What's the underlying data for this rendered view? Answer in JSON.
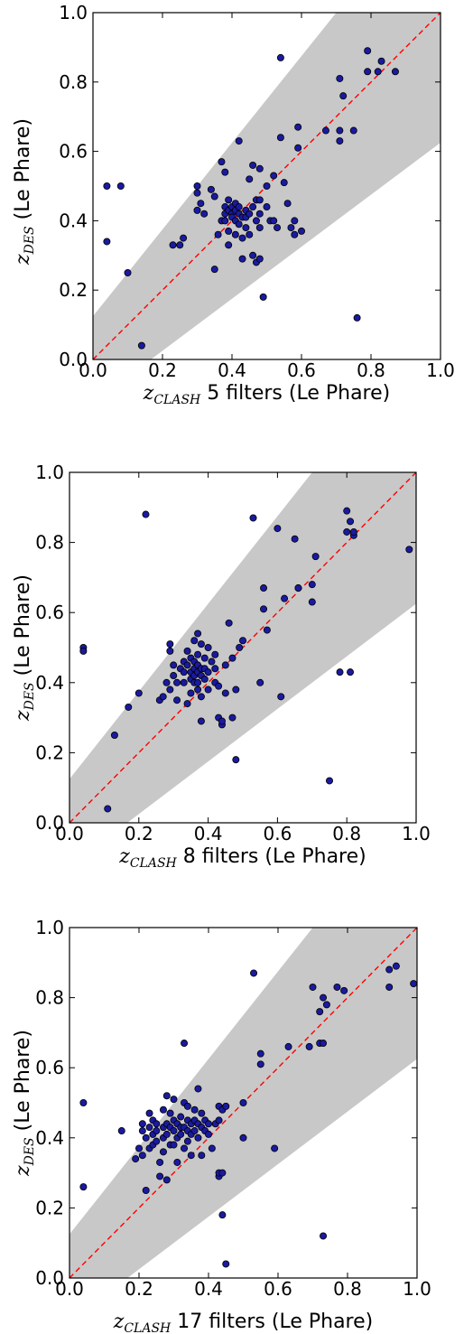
{
  "chart_data": [
    {
      "type": "scatter",
      "xlabel": {
        "var": "z",
        "sub": "CLASH",
        "rest": " 5 filters (Le Phare)"
      },
      "ylabel": {
        "var": "z",
        "sub": "DES",
        "rest": " (Le Phare)"
      },
      "xlim": [
        0.0,
        1.0
      ],
      "ylim": [
        0.0,
        1.0
      ],
      "xticks": [
        "0.0",
        "0.2",
        "0.4",
        "0.6",
        "0.8",
        "1.0"
      ],
      "yticks": [
        "0.0",
        "0.2",
        "0.4",
        "0.6",
        "0.8",
        "1.0"
      ],
      "reference_line": {
        "style": "dashed",
        "color": "#ff0000",
        "from": [
          0,
          0
        ],
        "to": [
          1,
          1
        ]
      },
      "band": {
        "color": "#c8c8c8",
        "lower_slope": 0.75,
        "lower_intercept": -0.125,
        "upper_slope": 1.25,
        "upper_intercept": 0.125
      },
      "marker_color": "#1a1aa0",
      "points": [
        [
          0.04,
          0.5
        ],
        [
          0.04,
          0.34
        ],
        [
          0.08,
          0.5
        ],
        [
          0.1,
          0.25
        ],
        [
          0.14,
          0.04
        ],
        [
          0.23,
          0.33
        ],
        [
          0.25,
          0.33
        ],
        [
          0.26,
          0.35
        ],
        [
          0.3,
          0.48
        ],
        [
          0.3,
          0.5
        ],
        [
          0.3,
          0.43
        ],
        [
          0.31,
          0.45
        ],
        [
          0.32,
          0.42
        ],
        [
          0.34,
          0.49
        ],
        [
          0.35,
          0.47
        ],
        [
          0.35,
          0.26
        ],
        [
          0.36,
          0.36
        ],
        [
          0.37,
          0.57
        ],
        [
          0.37,
          0.4
        ],
        [
          0.38,
          0.54
        ],
        [
          0.38,
          0.44
        ],
        [
          0.38,
          0.42
        ],
        [
          0.38,
          0.4
        ],
        [
          0.39,
          0.46
        ],
        [
          0.39,
          0.43
        ],
        [
          0.39,
          0.37
        ],
        [
          0.39,
          0.33
        ],
        [
          0.4,
          0.44
        ],
        [
          0.4,
          0.42
        ],
        [
          0.4,
          0.41
        ],
        [
          0.41,
          0.45
        ],
        [
          0.41,
          0.43
        ],
        [
          0.41,
          0.4
        ],
        [
          0.41,
          0.36
        ],
        [
          0.42,
          0.63
        ],
        [
          0.42,
          0.44
        ],
        [
          0.42,
          0.42
        ],
        [
          0.42,
          0.39
        ],
        [
          0.43,
          0.41
        ],
        [
          0.43,
          0.35
        ],
        [
          0.43,
          0.29
        ],
        [
          0.44,
          0.43
        ],
        [
          0.44,
          0.41
        ],
        [
          0.44,
          0.38
        ],
        [
          0.45,
          0.52
        ],
        [
          0.45,
          0.42
        ],
        [
          0.45,
          0.36
        ],
        [
          0.46,
          0.56
        ],
        [
          0.46,
          0.44
        ],
        [
          0.46,
          0.3
        ],
        [
          0.47,
          0.4
        ],
        [
          0.47,
          0.46
        ],
        [
          0.47,
          0.28
        ],
        [
          0.48,
          0.55
        ],
        [
          0.48,
          0.46
        ],
        [
          0.48,
          0.42
        ],
        [
          0.48,
          0.38
        ],
        [
          0.48,
          0.29
        ],
        [
          0.49,
          0.18
        ],
        [
          0.5,
          0.5
        ],
        [
          0.5,
          0.44
        ],
        [
          0.51,
          0.4
        ],
        [
          0.52,
          0.53
        ],
        [
          0.52,
          0.4
        ],
        [
          0.53,
          0.38
        ],
        [
          0.54,
          0.87
        ],
        [
          0.54,
          0.64
        ],
        [
          0.55,
          0.51
        ],
        [
          0.56,
          0.45
        ],
        [
          0.57,
          0.38
        ],
        [
          0.58,
          0.4
        ],
        [
          0.58,
          0.36
        ],
        [
          0.59,
          0.61
        ],
        [
          0.59,
          0.67
        ],
        [
          0.6,
          0.37
        ],
        [
          0.67,
          0.66
        ],
        [
          0.71,
          0.81
        ],
        [
          0.71,
          0.66
        ],
        [
          0.71,
          0.63
        ],
        [
          0.72,
          0.76
        ],
        [
          0.75,
          0.66
        ],
        [
          0.76,
          0.12
        ],
        [
          0.79,
          0.89
        ],
        [
          0.79,
          0.83
        ],
        [
          0.82,
          0.83
        ],
        [
          0.83,
          0.86
        ],
        [
          0.87,
          0.83
        ]
      ]
    },
    {
      "type": "scatter",
      "xlabel": {
        "var": "z",
        "sub": "CLASH",
        "rest": " 8 filters (Le Phare)"
      },
      "ylabel": {
        "var": "z",
        "sub": "DES",
        "rest": " (Le Phare)"
      },
      "xlim": [
        0.0,
        1.0
      ],
      "ylim": [
        0.0,
        1.0
      ],
      "xticks": [
        "0.0",
        "0.2",
        "0.4",
        "0.6",
        "0.8",
        "1.0"
      ],
      "yticks": [
        "0.0",
        "0.2",
        "0.4",
        "0.6",
        "0.8",
        "1.0"
      ],
      "reference_line": {
        "style": "dashed",
        "color": "#ff0000",
        "from": [
          0,
          0
        ],
        "to": [
          1,
          1
        ]
      },
      "band": {
        "color": "#c8c8c8",
        "lower_slope": 0.75,
        "lower_intercept": -0.125,
        "upper_slope": 1.25,
        "upper_intercept": 0.125
      },
      "marker_color": "#1a1aa0",
      "points": [
        [
          0.04,
          0.5
        ],
        [
          0.04,
          0.49
        ],
        [
          0.11,
          0.04
        ],
        [
          0.13,
          0.25
        ],
        [
          0.17,
          0.33
        ],
        [
          0.2,
          0.37
        ],
        [
          0.22,
          0.88
        ],
        [
          0.26,
          0.35
        ],
        [
          0.27,
          0.36
        ],
        [
          0.28,
          0.4
        ],
        [
          0.29,
          0.38
        ],
        [
          0.29,
          0.49
        ],
        [
          0.29,
          0.51
        ],
        [
          0.3,
          0.45
        ],
        [
          0.3,
          0.42
        ],
        [
          0.31,
          0.4
        ],
        [
          0.31,
          0.35
        ],
        [
          0.32,
          0.44
        ],
        [
          0.33,
          0.46
        ],
        [
          0.33,
          0.43
        ],
        [
          0.33,
          0.4
        ],
        [
          0.34,
          0.49
        ],
        [
          0.34,
          0.45
        ],
        [
          0.34,
          0.34
        ],
        [
          0.35,
          0.47
        ],
        [
          0.35,
          0.43
        ],
        [
          0.35,
          0.41
        ],
        [
          0.35,
          0.37
        ],
        [
          0.36,
          0.52
        ],
        [
          0.36,
          0.46
        ],
        [
          0.36,
          0.44
        ],
        [
          0.36,
          0.42
        ],
        [
          0.36,
          0.4
        ],
        [
          0.37,
          0.54
        ],
        [
          0.37,
          0.48
        ],
        [
          0.37,
          0.45
        ],
        [
          0.37,
          0.43
        ],
        [
          0.37,
          0.4
        ],
        [
          0.37,
          0.38
        ],
        [
          0.38,
          0.51
        ],
        [
          0.38,
          0.44
        ],
        [
          0.38,
          0.42
        ],
        [
          0.38,
          0.36
        ],
        [
          0.38,
          0.29
        ],
        [
          0.39,
          0.47
        ],
        [
          0.39,
          0.44
        ],
        [
          0.39,
          0.41
        ],
        [
          0.4,
          0.5
        ],
        [
          0.4,
          0.43
        ],
        [
          0.4,
          0.38
        ],
        [
          0.41,
          0.46
        ],
        [
          0.42,
          0.48
        ],
        [
          0.42,
          0.44
        ],
        [
          0.42,
          0.4
        ],
        [
          0.43,
          0.39
        ],
        [
          0.43,
          0.3
        ],
        [
          0.44,
          0.28
        ],
        [
          0.44,
          0.29
        ],
        [
          0.45,
          0.37
        ],
        [
          0.45,
          0.45
        ],
        [
          0.46,
          0.57
        ],
        [
          0.47,
          0.47
        ],
        [
          0.47,
          0.3
        ],
        [
          0.48,
          0.38
        ],
        [
          0.48,
          0.18
        ],
        [
          0.49,
          0.5
        ],
        [
          0.5,
          0.52
        ],
        [
          0.53,
          0.87
        ],
        [
          0.55,
          0.4
        ],
        [
          0.56,
          0.61
        ],
        [
          0.56,
          0.67
        ],
        [
          0.57,
          0.55
        ],
        [
          0.6,
          0.84
        ],
        [
          0.61,
          0.36
        ],
        [
          0.62,
          0.64
        ],
        [
          0.65,
          0.81
        ],
        [
          0.66,
          0.67
        ],
        [
          0.66,
          0.67
        ],
        [
          0.7,
          0.68
        ],
        [
          0.7,
          0.63
        ],
        [
          0.71,
          0.76
        ],
        [
          0.75,
          0.12
        ],
        [
          0.78,
          0.43
        ],
        [
          0.8,
          0.89
        ],
        [
          0.8,
          0.83
        ],
        [
          0.81,
          0.43
        ],
        [
          0.81,
          0.86
        ],
        [
          0.82,
          0.82
        ],
        [
          0.82,
          0.83
        ],
        [
          0.98,
          0.78
        ]
      ]
    },
    {
      "type": "scatter",
      "xlabel": {
        "var": "z",
        "sub": "CLASH",
        "rest": " 17 filters (Le Phare)"
      },
      "ylabel": {
        "var": "z",
        "sub": "DES",
        "rest": " (Le Phare)"
      },
      "xlim": [
        0.0,
        1.0
      ],
      "ylim": [
        0.0,
        1.0
      ],
      "xticks": [
        "0.0",
        "0.2",
        "0.4",
        "0.6",
        "0.8",
        "1.0"
      ],
      "yticks": [
        "0.0",
        "0.2",
        "0.4",
        "0.6",
        "0.8",
        "1.0"
      ],
      "reference_line": {
        "style": "dashed",
        "color": "#ff0000",
        "from": [
          0,
          0
        ],
        "to": [
          1,
          1
        ]
      },
      "band": {
        "color": "#c8c8c8",
        "lower_slope": 0.75,
        "lower_intercept": -0.125,
        "upper_slope": 1.25,
        "upper_intercept": 0.125
      },
      "marker_color": "#1a1aa0",
      "points": [
        [
          0.04,
          0.5
        ],
        [
          0.04,
          0.26
        ],
        [
          0.15,
          0.42
        ],
        [
          0.19,
          0.34
        ],
        [
          0.2,
          0.37
        ],
        [
          0.21,
          0.35
        ],
        [
          0.21,
          0.44
        ],
        [
          0.21,
          0.42
        ],
        [
          0.22,
          0.4
        ],
        [
          0.22,
          0.25
        ],
        [
          0.23,
          0.47
        ],
        [
          0.23,
          0.43
        ],
        [
          0.23,
          0.37
        ],
        [
          0.24,
          0.41
        ],
        [
          0.24,
          0.45
        ],
        [
          0.24,
          0.38
        ],
        [
          0.25,
          0.44
        ],
        [
          0.25,
          0.42
        ],
        [
          0.25,
          0.39
        ],
        [
          0.26,
          0.33
        ],
        [
          0.26,
          0.29
        ],
        [
          0.27,
          0.48
        ],
        [
          0.27,
          0.43
        ],
        [
          0.27,
          0.4
        ],
        [
          0.27,
          0.36
        ],
        [
          0.28,
          0.52
        ],
        [
          0.28,
          0.44
        ],
        [
          0.28,
          0.41
        ],
        [
          0.28,
          0.28
        ],
        [
          0.29,
          0.47
        ],
        [
          0.29,
          0.43
        ],
        [
          0.29,
          0.38
        ],
        [
          0.3,
          0.51
        ],
        [
          0.3,
          0.45
        ],
        [
          0.3,
          0.42
        ],
        [
          0.3,
          0.38
        ],
        [
          0.31,
          0.44
        ],
        [
          0.31,
          0.4
        ],
        [
          0.31,
          0.33
        ],
        [
          0.32,
          0.46
        ],
        [
          0.32,
          0.43
        ],
        [
          0.32,
          0.41
        ],
        [
          0.33,
          0.5
        ],
        [
          0.33,
          0.67
        ],
        [
          0.33,
          0.43
        ],
        [
          0.33,
          0.37
        ],
        [
          0.34,
          0.49
        ],
        [
          0.34,
          0.45
        ],
        [
          0.34,
          0.42
        ],
        [
          0.34,
          0.39
        ],
        [
          0.35,
          0.44
        ],
        [
          0.35,
          0.41
        ],
        [
          0.35,
          0.35
        ],
        [
          0.36,
          0.48
        ],
        [
          0.36,
          0.45
        ],
        [
          0.36,
          0.42
        ],
        [
          0.37,
          0.54
        ],
        [
          0.37,
          0.44
        ],
        [
          0.37,
          0.4
        ],
        [
          0.38,
          0.47
        ],
        [
          0.38,
          0.43
        ],
        [
          0.38,
          0.35
        ],
        [
          0.39,
          0.45
        ],
        [
          0.39,
          0.42
        ],
        [
          0.4,
          0.44
        ],
        [
          0.4,
          0.41
        ],
        [
          0.41,
          0.37
        ],
        [
          0.42,
          0.44
        ],
        [
          0.43,
          0.49
        ],
        [
          0.43,
          0.45
        ],
        [
          0.43,
          0.29
        ],
        [
          0.43,
          0.3
        ],
        [
          0.44,
          0.18
        ],
        [
          0.44,
          0.3
        ],
        [
          0.44,
          0.48
        ],
        [
          0.45,
          0.04
        ],
        [
          0.45,
          0.49
        ],
        [
          0.5,
          0.4
        ],
        [
          0.5,
          0.5
        ],
        [
          0.53,
          0.87
        ],
        [
          0.55,
          0.64
        ],
        [
          0.55,
          0.61
        ],
        [
          0.59,
          0.37
        ],
        [
          0.63,
          0.66
        ],
        [
          0.69,
          0.66
        ],
        [
          0.7,
          0.83
        ],
        [
          0.72,
          0.76
        ],
        [
          0.72,
          0.67
        ],
        [
          0.73,
          0.8
        ],
        [
          0.73,
          0.67
        ],
        [
          0.73,
          0.12
        ],
        [
          0.74,
          0.78
        ],
        [
          0.77,
          0.83
        ],
        [
          0.79,
          0.82
        ],
        [
          0.92,
          0.83
        ],
        [
          0.92,
          0.88
        ],
        [
          0.94,
          0.89
        ],
        [
          0.99,
          0.84
        ]
      ]
    }
  ]
}
